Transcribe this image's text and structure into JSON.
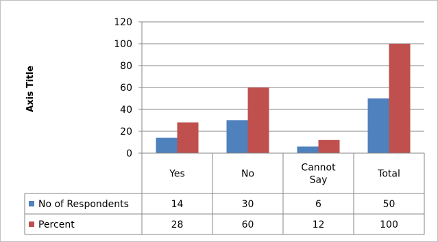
{
  "chart_data": {
    "type": "bar",
    "title": "",
    "xlabel": "",
    "ylabel": "Axis Title",
    "ylim": [
      0,
      120
    ],
    "yticks": [
      0,
      20,
      40,
      60,
      80,
      100,
      120
    ],
    "grid": true,
    "legend": "data-table",
    "categories": [
      [
        "Yes"
      ],
      [
        "No"
      ],
      [
        "Cannot",
        "Say"
      ],
      [
        "Total"
      ]
    ],
    "series": [
      {
        "name": "No of Respondents",
        "color": "#4f81bd",
        "values": [
          14,
          30,
          6,
          50
        ]
      },
      {
        "name": "Percent",
        "color": "#c0504d",
        "values": [
          28,
          60,
          12,
          100
        ]
      }
    ]
  }
}
